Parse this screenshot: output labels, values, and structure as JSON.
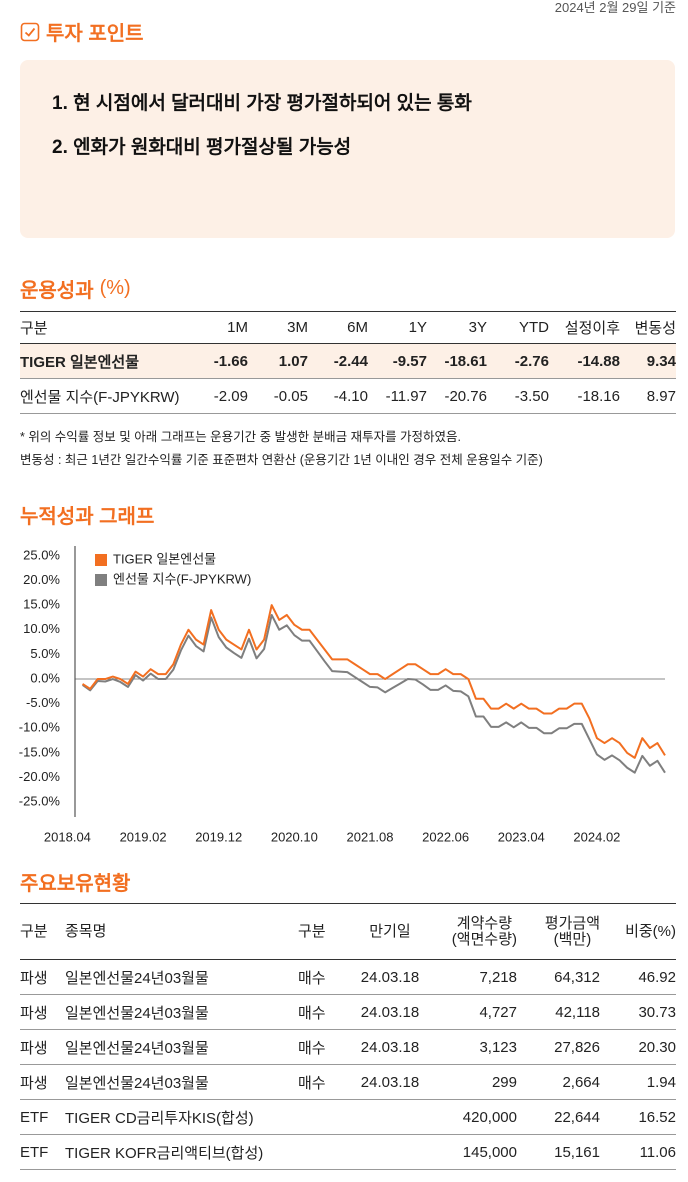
{
  "date": "2024년 2월 29일 기준",
  "invest_point": {
    "title": "투자 포인트",
    "items": [
      "1. 현 시점에서 달러대비 가장 평가절하되어 있는 통화",
      "2. 엔화가 원화대비 평가절상될 가능성"
    ]
  },
  "performance": {
    "title": "운용성과",
    "unit": "(%)",
    "headers": [
      "구분",
      "1M",
      "3M",
      "6M",
      "1Y",
      "3Y",
      "YTD",
      "설정이후",
      "변동성"
    ],
    "rows": [
      [
        "TIGER 일본엔선물",
        "-1.66",
        "1.07",
        "-2.44",
        "-9.57",
        "-18.61",
        "-2.76",
        "-14.88",
        "9.34"
      ],
      [
        "엔선물 지수(F-JPYKRW)",
        "-2.09",
        "-0.05",
        "-4.10",
        "-11.97",
        "-20.76",
        "-3.50",
        "-18.16",
        "8.97"
      ]
    ]
  },
  "notes": [
    "* 위의 수익률 정보 및 아래 그래프는 운용기간 중 발생한 분배금 재투자를 가정하였음.",
    "변동성 : 최근 1년간 일간수익률 기준 표준편차 연환산 (운용기간 1년 이내인 경우 전체 운용일수 기준)"
  ],
  "chart_data": {
    "type": "line",
    "title": "누적성과 그래프",
    "x": [
      "2018.06",
      "2018.07",
      "2018.08",
      "2018.09",
      "2018.10",
      "2018.11",
      "2018.12",
      "2019.01",
      "2019.02",
      "2019.03",
      "2019.04",
      "2019.05",
      "2019.06",
      "2019.07",
      "2019.08",
      "2019.09",
      "2019.10",
      "2019.11",
      "2019.12",
      "2020.01",
      "2020.02",
      "2020.03",
      "2020.04",
      "2020.05",
      "2020.06",
      "2020.07",
      "2020.08",
      "2020.09",
      "2020.10",
      "2020.11",
      "2020.12",
      "2021.01",
      "2021.02",
      "2021.03",
      "2021.04",
      "2021.05",
      "2021.06",
      "2021.07",
      "2021.08",
      "2021.09",
      "2021.10",
      "2021.11",
      "2021.12",
      "2022.01",
      "2022.02",
      "2022.03",
      "2022.04",
      "2022.05",
      "2022.06",
      "2022.07",
      "2022.08",
      "2022.09",
      "2022.10",
      "2022.11",
      "2022.12",
      "2023.01",
      "2023.02",
      "2023.03",
      "2023.04",
      "2023.05",
      "2023.06",
      "2023.07",
      "2023.08",
      "2023.09",
      "2023.10",
      "2023.11",
      "2023.12",
      "2024.01",
      "2024.02",
      "2024.03",
      "2024.04",
      "2024.05",
      "2024.06",
      "2024.07",
      "2024.08",
      "2024.09",
      "2024.10",
      "2024.11"
    ],
    "series": [
      {
        "name": "TIGER 일본엔선물",
        "color": "#f26f21",
        "values": [
          -1,
          -2,
          0,
          0,
          0.5,
          0,
          -1,
          1.5,
          0.5,
          2,
          1,
          1,
          3,
          7,
          10,
          8,
          7,
          14,
          10,
          8,
          7,
          6,
          10,
          6,
          8,
          15,
          12,
          13,
          11,
          10,
          10,
          8,
          6,
          4,
          4,
          4,
          3,
          2,
          1,
          1,
          0,
          1,
          2,
          3,
          3,
          2,
          1,
          1,
          2,
          1,
          1,
          0,
          -4,
          -4,
          -6,
          -6,
          -5,
          -6,
          -5,
          -6,
          -6,
          -7,
          -7,
          -6,
          -6,
          -5,
          -5,
          -8,
          -12,
          -13,
          -12,
          -13,
          -15,
          -16,
          -12,
          -14,
          -13,
          -15.5
        ]
      },
      {
        "name": "엔선물 지수(F-JPYKRW)",
        "color": "#7f7f7f",
        "values": [
          -1.2,
          -2.3,
          -0.4,
          -0.5,
          0,
          -0.6,
          -1.6,
          0.8,
          -0.3,
          1.1,
          0,
          0,
          1.9,
          5.8,
          8.8,
          6.7,
          5.6,
          12.5,
          8.5,
          6.4,
          5.3,
          4.3,
          8.2,
          4.2,
          6.1,
          13,
          10,
          10.9,
          8.9,
          7.8,
          7.8,
          5.7,
          3.6,
          1.6,
          1.5,
          1.4,
          0.4,
          -0.6,
          -1.6,
          -1.7,
          -2.7,
          -1.8,
          -0.9,
          0,
          -0.1,
          -1.1,
          -2.2,
          -2.2,
          -1.3,
          -2.4,
          -2.5,
          -3.5,
          -7.6,
          -7.6,
          -9.7,
          -9.7,
          -8.8,
          -9.8,
          -8.8,
          -9.9,
          -9.9,
          -11,
          -11,
          -10,
          -10,
          -9.1,
          -9.1,
          -12.2,
          -15.3,
          -16.4,
          -15.5,
          -16.5,
          -18,
          -19,
          -15.6,
          -17.6,
          -16.6,
          -19
        ]
      }
    ],
    "xlim": [
      "2018.05",
      "2024.11"
    ],
    "xticks": [
      "2018.04",
      "2019.02",
      "2019.12",
      "2020.10",
      "2021.08",
      "2022.06",
      "2023.04",
      "2024.02"
    ],
    "ylim": [
      -28,
      27
    ],
    "yticks": [
      {
        "value": 25,
        "label": "25.0%"
      },
      {
        "value": 20,
        "label": "20.0%"
      },
      {
        "value": 15,
        "label": "15.0%"
      },
      {
        "value": 10,
        "label": "10.0%"
      },
      {
        "value": 5,
        "label": "5.0%"
      },
      {
        "value": 0,
        "label": "0.0%"
      },
      {
        "value": -5,
        "label": "-5.0%"
      },
      {
        "value": -10,
        "label": "-10.0%"
      },
      {
        "value": -15,
        "label": "-15.0%"
      },
      {
        "value": -20,
        "label": "-20.0%"
      },
      {
        "value": -25,
        "label": "-25.0%"
      }
    ],
    "zero_line": true,
    "legend": "top-left"
  },
  "holdings": {
    "title": "주요보유현황",
    "headers": [
      [
        "구분"
      ],
      [
        "종목명"
      ],
      [
        "구분"
      ],
      [
        "만기일"
      ],
      [
        "계약수량",
        "(액면수량)"
      ],
      [
        "평가금액",
        "(백만)"
      ],
      [
        "비중(%)"
      ]
    ],
    "rows": [
      [
        "파생",
        "일본엔선물24년03월물",
        "매수",
        "24.03.18",
        "7,218",
        "64,312",
        "46.92"
      ],
      [
        "파생",
        "일본엔선물24년03월물",
        "매수",
        "24.03.18",
        "4,727",
        "42,118",
        "30.73"
      ],
      [
        "파생",
        "일본엔선물24년03월물",
        "매수",
        "24.03.18",
        "3,123",
        "27,826",
        "20.30"
      ],
      [
        "파생",
        "일본엔선물24년03월물",
        "매수",
        "24.03.18",
        "299",
        "2,664",
        "1.94"
      ],
      [
        "ETF",
        "TIGER CD금리투자KIS(합성)",
        null,
        null,
        "420,000",
        "22,644",
        "16.52"
      ],
      [
        "ETF",
        "TIGER KOFR금리액티브(합성)",
        null,
        null,
        "145,000",
        "15,161",
        "11.06"
      ]
    ]
  }
}
